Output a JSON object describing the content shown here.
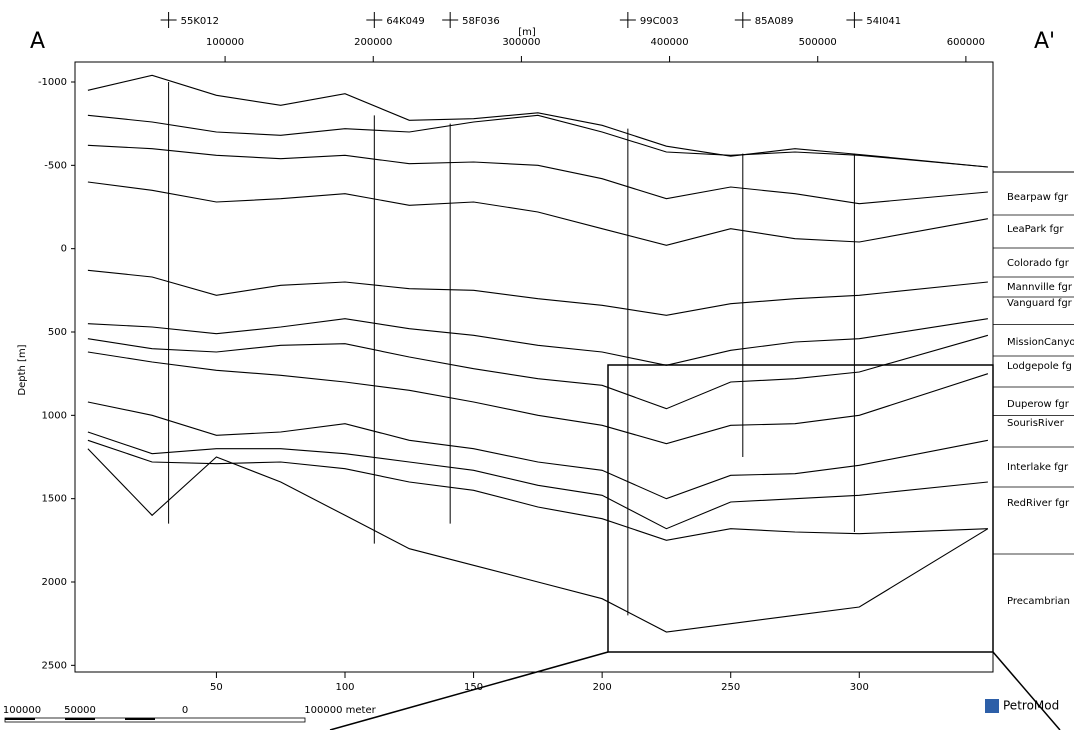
{
  "chart_data": {
    "type": "line",
    "y_label": "Depth [m]",
    "x2_label": "[m]",
    "x": [
      0,
      25,
      50,
      75,
      100,
      125,
      150,
      175,
      200,
      225,
      250,
      275,
      300,
      350
    ],
    "xlim": [
      -5,
      352
    ],
    "xticks": [
      50,
      100,
      150,
      200,
      250,
      300
    ],
    "x2lim": [
      -1300,
      618300
    ],
    "x2ticks": [
      100000,
      200000,
      300000,
      400000,
      500000,
      600000
    ],
    "ylim": [
      -1120,
      2540
    ],
    "yticks": [
      -1000,
      -500,
      0,
      500,
      1000,
      1500,
      2000,
      2500
    ],
    "inverted_y": true,
    "line_color": "#000000",
    "series": [
      {
        "values": [
          -950,
          -1040,
          -920,
          -860,
          -930,
          -770,
          -780,
          -815,
          -740,
          -615,
          -555,
          -600,
          -565,
          -490
        ]
      },
      {
        "values": [
          -800,
          -760,
          -700,
          -680,
          -720,
          -700,
          -760,
          -800,
          -700,
          -580,
          -560,
          -580,
          -560,
          -490
        ]
      },
      {
        "values": [
          -620,
          -600,
          -560,
          -540,
          -560,
          -510,
          -520,
          -500,
          -420,
          -300,
          -370,
          -330,
          -270,
          -340
        ]
      },
      {
        "values": [
          -400,
          -350,
          -280,
          -300,
          -330,
          -260,
          -280,
          -220,
          -120,
          -20,
          -120,
          -60,
          -40,
          -180
        ]
      },
      {
        "values": [
          130,
          170,
          280,
          220,
          200,
          240,
          250,
          300,
          340,
          400,
          330,
          300,
          280,
          200
        ]
      },
      {
        "values": [
          450,
          470,
          510,
          470,
          420,
          480,
          520,
          580,
          620,
          700,
          610,
          560,
          540,
          420
        ]
      },
      {
        "values": [
          540,
          600,
          620,
          580,
          570,
          650,
          720,
          780,
          820,
          960,
          800,
          780,
          740,
          520
        ]
      },
      {
        "values": [
          620,
          680,
          730,
          760,
          800,
          850,
          920,
          1000,
          1060,
          1170,
          1060,
          1050,
          1000,
          750
        ]
      },
      {
        "values": [
          920,
          1000,
          1120,
          1100,
          1050,
          1150,
          1200,
          1280,
          1330,
          1500,
          1360,
          1350,
          1300,
          1150
        ]
      },
      {
        "values": [
          1100,
          1230,
          1200,
          1200,
          1230,
          1280,
          1330,
          1420,
          1480,
          1680,
          1520,
          1500,
          1480,
          1400
        ]
      },
      {
        "values": [
          1150,
          1280,
          1290,
          1280,
          1320,
          1400,
          1450,
          1550,
          1620,
          1750,
          1680,
          1700,
          1710,
          1680
        ]
      },
      {
        "values": [
          1200,
          1600,
          1250,
          1400,
          1600,
          1800,
          1900,
          2000,
          2100,
          2300,
          2250,
          2200,
          2150,
          1680
        ]
      }
    ],
    "wells": [
      {
        "name": "55K012",
        "x": 31.4,
        "top": -1000,
        "bottom": 1650
      },
      {
        "name": "64K049",
        "x": 111.4,
        "top": -800,
        "bottom": 1770
      },
      {
        "name": "58F036",
        "x": 140.9,
        "top": -750,
        "bottom": 1650
      },
      {
        "name": "99C003",
        "x": 210,
        "top": -720,
        "bottom": 2200
      },
      {
        "name": "85A089",
        "x": 254.7,
        "top": -570,
        "bottom": 1250
      },
      {
        "name": "54I041",
        "x": 298.1,
        "top": -570,
        "bottom": 1700
      }
    ]
  },
  "section_labels": {
    "left": "A",
    "right": "A'"
  },
  "formations": [
    "Bearpaw fgr",
    "LeaPark fgr",
    "Colorado fgr",
    "Mannville fgr",
    "Vanguard fgr",
    "MissionCanyo",
    "Lodgepole fg",
    "Duperow fgr",
    "SourisRiver",
    "Interlake fgr",
    "RedRiver fgr",
    "Precambrian"
  ],
  "scale_bar": [
    "100000",
    "50000",
    "0",
    "100000  meter"
  ],
  "logo": "PetroMod"
}
